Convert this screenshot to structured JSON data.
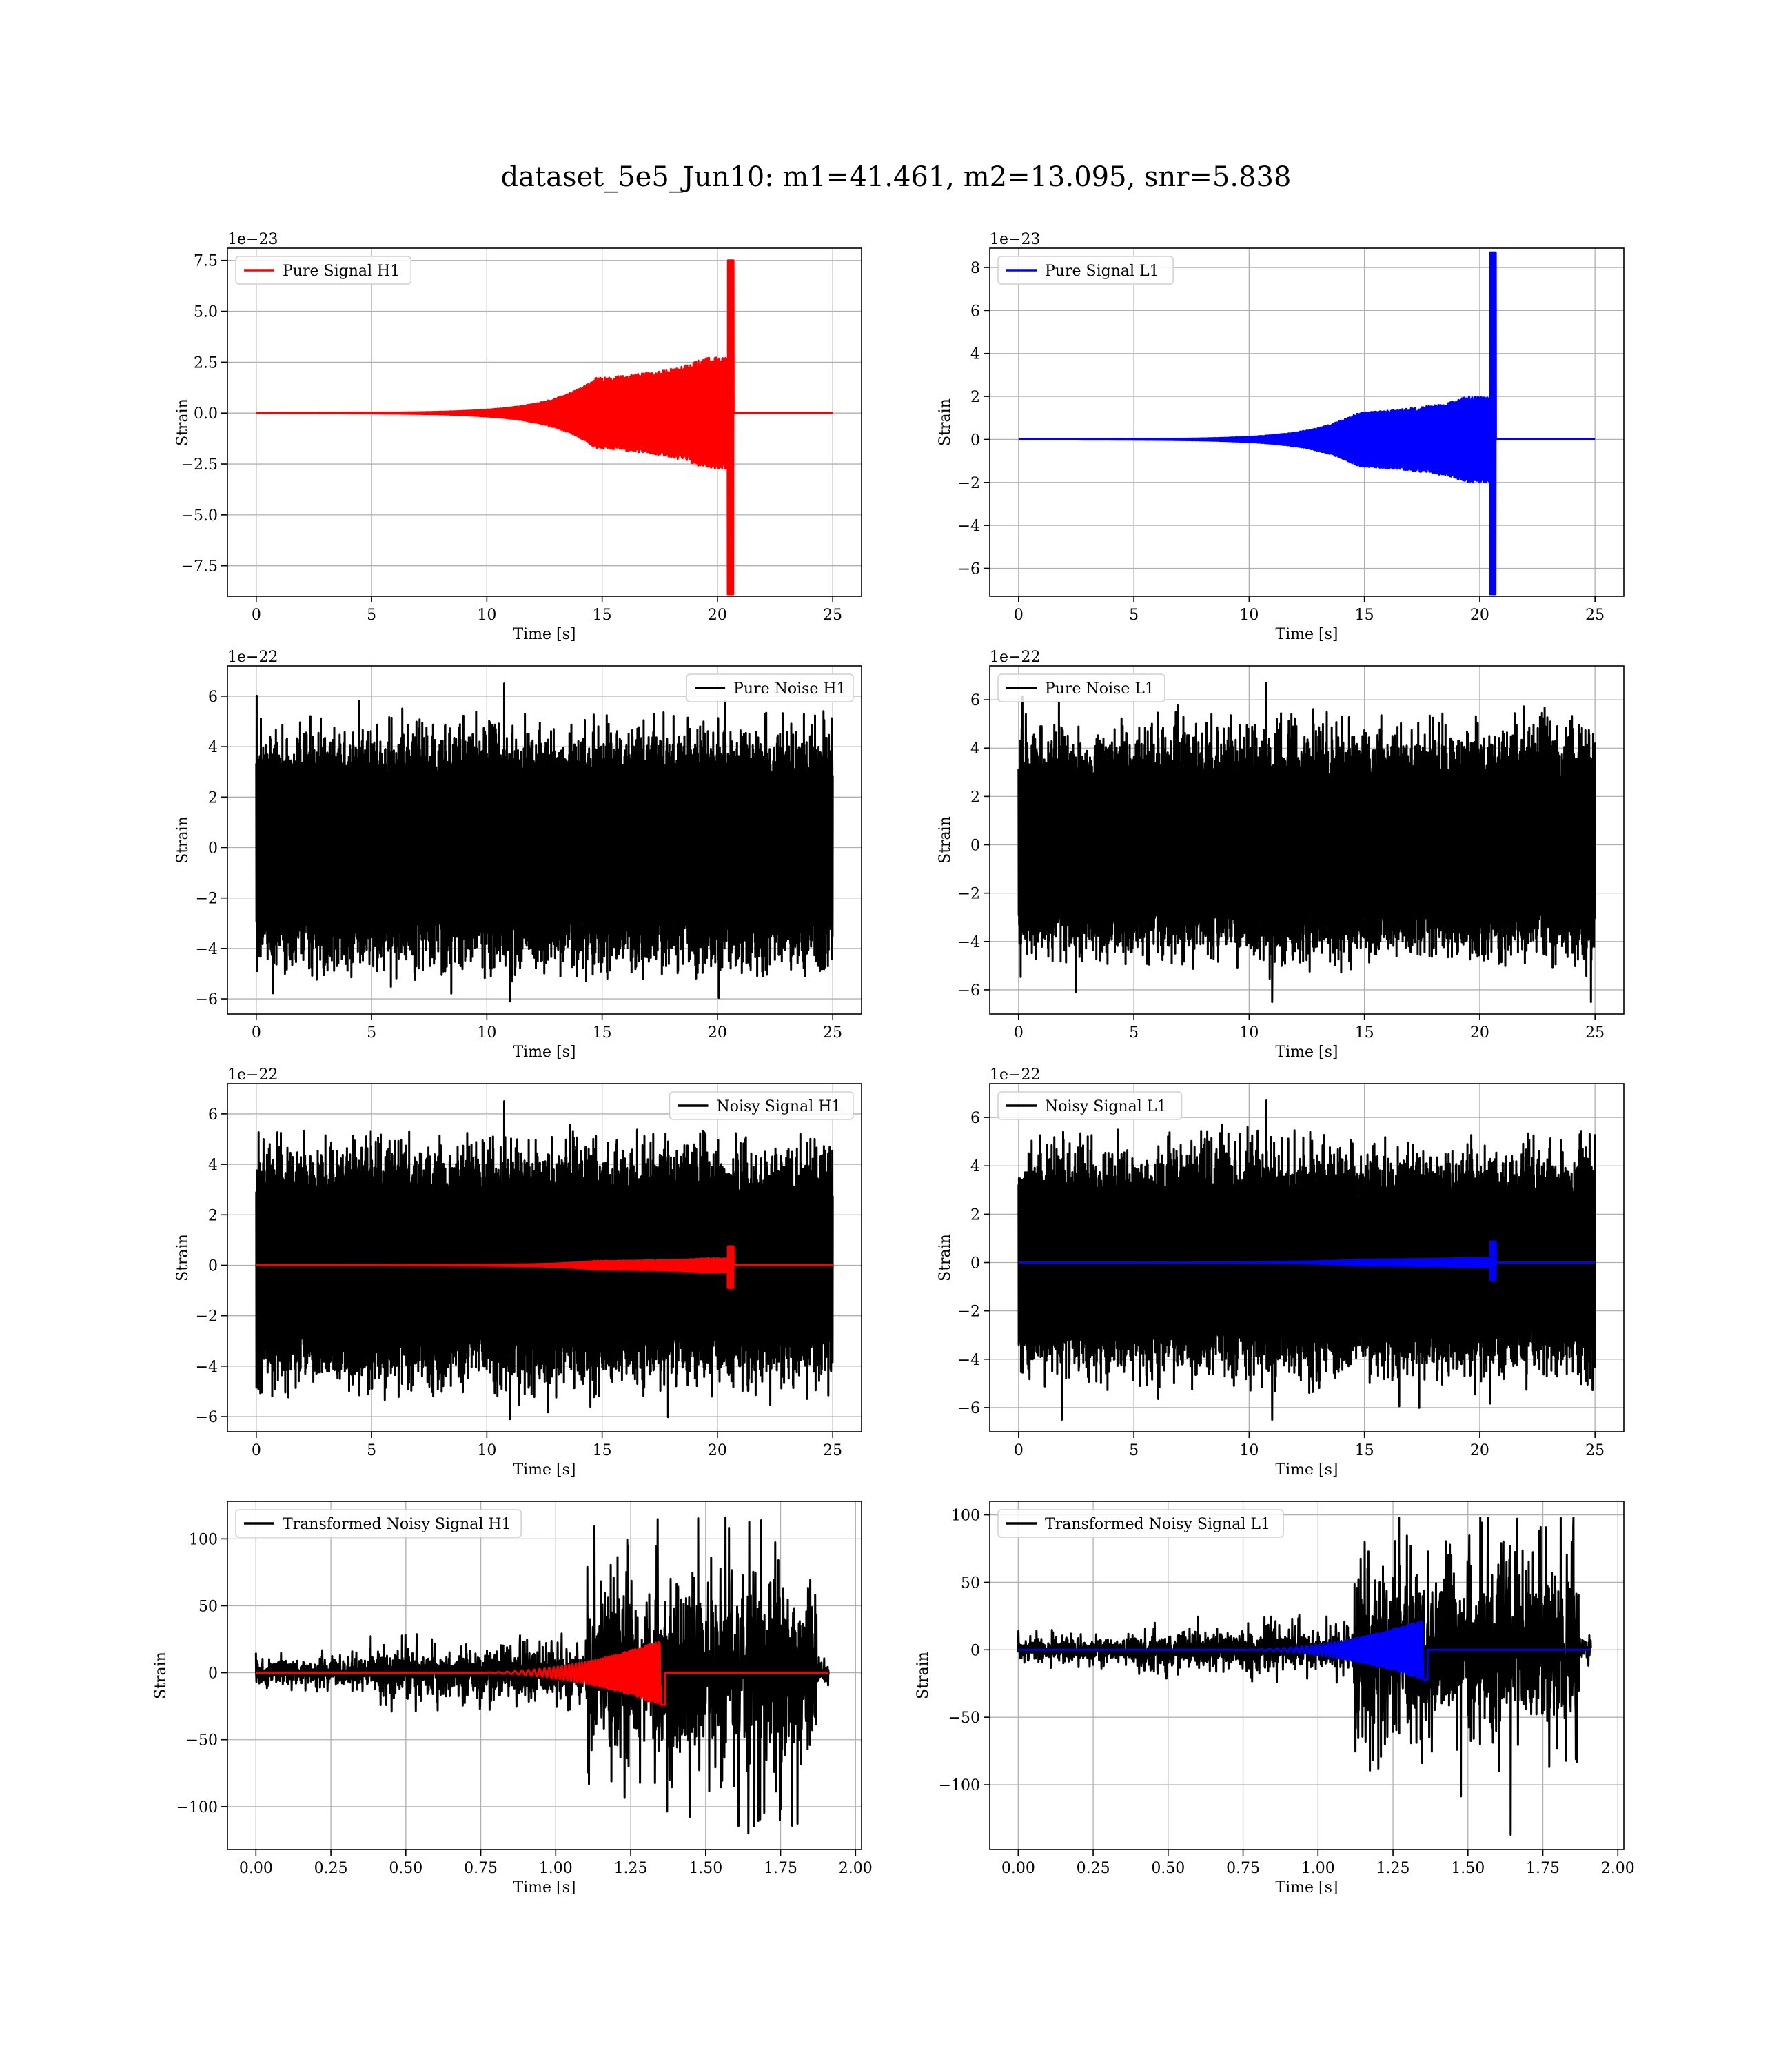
{
  "figure_title": "dataset_5e5_Jun10: m1=41.461, m2=13.095, snr=5.838",
  "colors": {
    "h1_signal": "#ff0000",
    "l1_signal": "#0000ff",
    "noise": "#000000",
    "grid": "#b0b0b0"
  },
  "chart_data": [
    {
      "type": "line",
      "title": "",
      "xlabel": "Time [s]",
      "ylabel": "Strain",
      "offset_text": "1e−23",
      "xlim": [
        -1.25,
        26.25
      ],
      "ylim": [
        -9.0,
        8.1
      ],
      "xticks": [
        0,
        5,
        10,
        15,
        20,
        25
      ],
      "xtick_labels": [
        "0",
        "5",
        "10",
        "15",
        "20",
        "25"
      ],
      "yticks": [
        -7.5,
        -5.0,
        -2.5,
        0.0,
        2.5,
        5.0,
        7.5
      ],
      "ytick_labels": [
        "−7.5",
        "−5.0",
        "−2.5",
        "0.0",
        "2.5",
        "5.0",
        "7.5"
      ],
      "grid": true,
      "legend": "upper left",
      "series": [
        {
          "name": "Pure Signal H1",
          "color": "#ff0000",
          "kind": "chirp",
          "x_range": [
            0,
            25
          ],
          "merger_t": 20.7,
          "peak_pos": 7.5,
          "peak_neg": -8.9,
          "pre_merger_amp": 2.6
        }
      ]
    },
    {
      "type": "line",
      "title": "",
      "xlabel": "Time [s]",
      "ylabel": "Strain",
      "offset_text": "1e−23",
      "xlim": [
        -1.25,
        26.25
      ],
      "ylim": [
        -7.3,
        8.9
      ],
      "xticks": [
        0,
        5,
        10,
        15,
        20,
        25
      ],
      "xtick_labels": [
        "0",
        "5",
        "10",
        "15",
        "20",
        "25"
      ],
      "yticks": [
        -6,
        -4,
        -2,
        0,
        2,
        4,
        6,
        8
      ],
      "ytick_labels": [
        "−6",
        "−4",
        "−2",
        "0",
        "2",
        "4",
        "6",
        "8"
      ],
      "grid": true,
      "legend": "upper left",
      "series": [
        {
          "name": "Pure Signal L1",
          "color": "#0000ff",
          "kind": "chirp",
          "x_range": [
            0,
            25
          ],
          "merger_t": 20.7,
          "peak_pos": 8.7,
          "peak_neg": -7.2,
          "pre_merger_amp": 1.9
        }
      ]
    },
    {
      "type": "line",
      "title": "",
      "xlabel": "Time [s]",
      "ylabel": "Strain",
      "offset_text": "1e−22",
      "xlim": [
        -1.25,
        26.25
      ],
      "ylim": [
        -6.6,
        7.2
      ],
      "xticks": [
        0,
        5,
        10,
        15,
        20,
        25
      ],
      "xtick_labels": [
        "0",
        "5",
        "10",
        "15",
        "20",
        "25"
      ],
      "yticks": [
        -6,
        -4,
        -2,
        0,
        2,
        4,
        6
      ],
      "ytick_labels": [
        "−6",
        "−4",
        "−2",
        "0",
        "2",
        "4",
        "6"
      ],
      "grid": true,
      "legend": "upper right",
      "series": [
        {
          "name": "Pure Noise H1",
          "color": "#000000",
          "kind": "noise",
          "x_range": [
            0,
            25
          ],
          "envelope": [
            -4.2,
            4.3
          ],
          "spike_max": 6.5,
          "spike_min": -6.1
        }
      ]
    },
    {
      "type": "line",
      "title": "",
      "xlabel": "Time [s]",
      "ylabel": "Strain",
      "offset_text": "1e−22",
      "xlim": [
        -1.25,
        26.25
      ],
      "ylim": [
        -7.0,
        7.4
      ],
      "xticks": [
        0,
        5,
        10,
        15,
        20,
        25
      ],
      "xtick_labels": [
        "0",
        "5",
        "10",
        "15",
        "20",
        "25"
      ],
      "yticks": [
        -6,
        -4,
        -2,
        0,
        2,
        4,
        6
      ],
      "ytick_labels": [
        "−6",
        "−4",
        "−2",
        "0",
        "2",
        "4",
        "6"
      ],
      "grid": true,
      "legend": "upper left",
      "series": [
        {
          "name": "Pure Noise L1",
          "color": "#000000",
          "kind": "noise",
          "x_range": [
            0,
            25
          ],
          "envelope": [
            -4.0,
            4.4
          ],
          "spike_max": 6.7,
          "spike_min": -6.5
        }
      ]
    },
    {
      "type": "line",
      "title": "",
      "xlabel": "Time [s]",
      "ylabel": "Strain",
      "offset_text": "1e−22",
      "xlim": [
        -1.25,
        26.25
      ],
      "ylim": [
        -6.6,
        7.2
      ],
      "xticks": [
        0,
        5,
        10,
        15,
        20,
        25
      ],
      "xtick_labels": [
        "0",
        "5",
        "10",
        "15",
        "20",
        "25"
      ],
      "yticks": [
        -6,
        -4,
        -2,
        0,
        2,
        4,
        6
      ],
      "ytick_labels": [
        "−6",
        "−4",
        "−2",
        "0",
        "2",
        "4",
        "6"
      ],
      "grid": true,
      "legend": "upper right",
      "series": [
        {
          "name": "Noisy Signal H1",
          "color": "#000000",
          "kind": "noise",
          "x_range": [
            0,
            25
          ],
          "envelope": [
            -4.2,
            4.3
          ],
          "spike_max": 6.5,
          "spike_min": -6.1
        },
        {
          "name": "",
          "color": "#ff0000",
          "kind": "chirp",
          "x_range": [
            0,
            25
          ],
          "merger_t": 20.7,
          "peak_pos": 0.75,
          "peak_neg": -0.9,
          "pre_merger_amp": 0.26
        }
      ]
    },
    {
      "type": "line",
      "title": "",
      "xlabel": "Time [s]",
      "ylabel": "Strain",
      "offset_text": "1e−22",
      "xlim": [
        -1.25,
        26.25
      ],
      "ylim": [
        -7.0,
        7.4
      ],
      "xticks": [
        0,
        5,
        10,
        15,
        20,
        25
      ],
      "xtick_labels": [
        "0",
        "5",
        "10",
        "15",
        "20",
        "25"
      ],
      "yticks": [
        -6,
        -4,
        -2,
        0,
        2,
        4,
        6
      ],
      "ytick_labels": [
        "−6",
        "−4",
        "−2",
        "0",
        "2",
        "4",
        "6"
      ],
      "grid": true,
      "legend": "upper left",
      "series": [
        {
          "name": "Noisy Signal L1",
          "color": "#000000",
          "kind": "noise",
          "x_range": [
            0,
            25
          ],
          "envelope": [
            -4.0,
            4.4
          ],
          "spike_max": 6.7,
          "spike_min": -6.5
        },
        {
          "name": "",
          "color": "#0000ff",
          "kind": "chirp",
          "x_range": [
            0,
            25
          ],
          "merger_t": 20.7,
          "peak_pos": 0.87,
          "peak_neg": -0.72,
          "pre_merger_amp": 0.19
        }
      ]
    },
    {
      "type": "line",
      "title": "",
      "xlabel": "Time [s]",
      "ylabel": "Strain",
      "offset_text": "",
      "xlim": [
        -0.095,
        2.02
      ],
      "ylim": [
        -132,
        128
      ],
      "xticks": [
        0.0,
        0.25,
        0.5,
        0.75,
        1.0,
        1.25,
        1.5,
        1.75,
        2.0
      ],
      "xtick_labels": [
        "0.00",
        "0.25",
        "0.50",
        "0.75",
        "1.00",
        "1.25",
        "1.50",
        "1.75",
        "2.00"
      ],
      "yticks": [
        -100,
        -50,
        0,
        50,
        100
      ],
      "ytick_labels": [
        "−100",
        "−50",
        "0",
        "50",
        "100"
      ],
      "grid": true,
      "legend": "upper left",
      "series": [
        {
          "name": "Transformed Noisy Signal H1",
          "color": "#000000",
          "kind": "whitened",
          "x_range": [
            0,
            1.91
          ],
          "segments": [
            {
              "t0": 0.0,
              "t1": 0.38,
              "amp": 8
            },
            {
              "t0": 0.38,
              "t1": 1.1,
              "amp": 14
            },
            {
              "t0": 1.1,
              "t1": 1.87,
              "amp": 55
            },
            {
              "t0": 1.87,
              "t1": 1.91,
              "amp": 6
            }
          ],
          "spike_max": 116,
          "spike_min": -120
        },
        {
          "name": "",
          "color": "#ff0000",
          "kind": "chirp_whitened",
          "x_range": [
            0,
            1.91
          ],
          "merger_t": 1.35,
          "start_t": 0.7,
          "peak": 24
        }
      ]
    },
    {
      "type": "line",
      "title": "",
      "xlabel": "Time [s]",
      "ylabel": "Strain",
      "offset_text": "",
      "xlim": [
        -0.095,
        2.02
      ],
      "ylim": [
        -148,
        110
      ],
      "xticks": [
        0.0,
        0.25,
        0.5,
        0.75,
        1.0,
        1.25,
        1.5,
        1.75,
        2.0
      ],
      "xtick_labels": [
        "0.00",
        "0.25",
        "0.50",
        "0.75",
        "1.00",
        "1.25",
        "1.50",
        "1.75",
        "2.00"
      ],
      "yticks": [
        -100,
        -50,
        0,
        50,
        100
      ],
      "ytick_labels": [
        "−100",
        "−50",
        "0",
        "50",
        "100"
      ],
      "grid": true,
      "legend": "upper left",
      "series": [
        {
          "name": "Transformed Noisy Signal L1",
          "color": "#000000",
          "kind": "whitened",
          "x_range": [
            0,
            1.91
          ],
          "segments": [
            {
              "t0": 0.0,
              "t1": 0.38,
              "amp": 7
            },
            {
              "t0": 0.38,
              "t1": 1.12,
              "amp": 12
            },
            {
              "t0": 1.12,
              "t1": 1.87,
              "amp": 52
            },
            {
              "t0": 1.87,
              "t1": 1.91,
              "amp": 6
            }
          ],
          "spike_max": 98,
          "spike_min": -137
        },
        {
          "name": "",
          "color": "#0000ff",
          "kind": "chirp_whitened",
          "x_range": [
            0,
            1.91
          ],
          "merger_t": 1.35,
          "start_t": 0.7,
          "peak": 22
        }
      ]
    }
  ]
}
